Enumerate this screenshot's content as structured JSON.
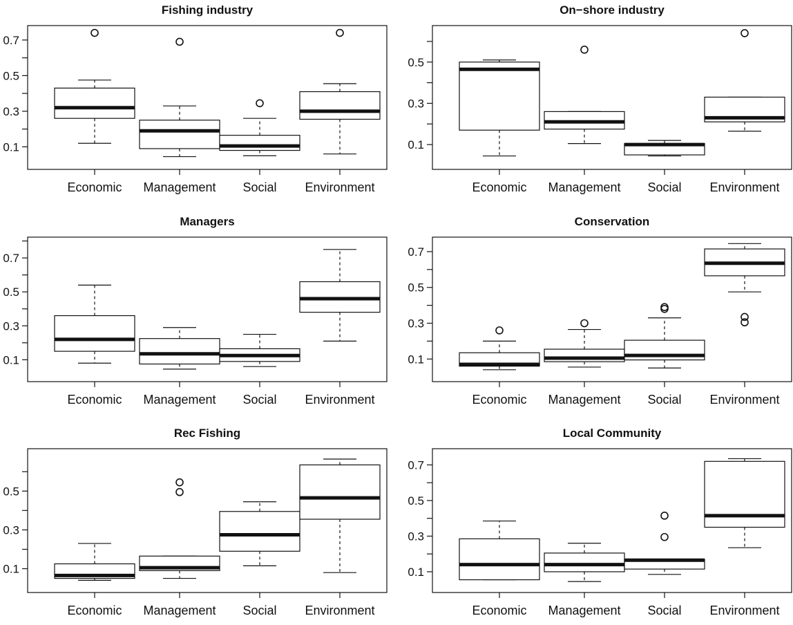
{
  "chart_data": [
    {
      "type": "box",
      "title": "Fishing industry",
      "categories": [
        "Economic",
        "Management",
        "Social",
        "Environment"
      ],
      "yticks": [
        0.1,
        0.3,
        0.5,
        0.7
      ],
      "ylim": [
        0.02,
        0.75
      ],
      "boxes": [
        {
          "name": "Economic",
          "min": 0.12,
          "q1": 0.26,
          "median": 0.32,
          "q3": 0.43,
          "max": 0.475,
          "outliers": [
            0.74
          ]
        },
        {
          "name": "Management",
          "min": 0.045,
          "q1": 0.09,
          "median": 0.19,
          "q3": 0.25,
          "max": 0.33,
          "outliers": [
            0.69
          ]
        },
        {
          "name": "Social",
          "min": 0.05,
          "q1": 0.08,
          "median": 0.105,
          "q3": 0.165,
          "max": 0.26,
          "outliers": [
            0.345
          ]
        },
        {
          "name": "Environment",
          "min": 0.06,
          "q1": 0.255,
          "median": 0.3,
          "q3": 0.41,
          "max": 0.455,
          "outliers": [
            0.74
          ]
        }
      ]
    },
    {
      "type": "box",
      "title": "On−shore industry",
      "categories": [
        "Economic",
        "Management",
        "Social",
        "Environment"
      ],
      "yticks": [
        0.1,
        0.3,
        0.5
      ],
      "ylim": [
        0.02,
        0.65
      ],
      "boxes": [
        {
          "name": "Economic",
          "min": 0.045,
          "q1": 0.17,
          "median": 0.465,
          "q3": 0.5,
          "max": 0.51,
          "outliers": []
        },
        {
          "name": "Management",
          "min": 0.105,
          "q1": 0.175,
          "median": 0.21,
          "q3": 0.26,
          "max": 0.26,
          "outliers": [
            0.56
          ]
        },
        {
          "name": "Social",
          "min": 0.045,
          "q1": 0.05,
          "median": 0.1,
          "q3": 0.105,
          "max": 0.12,
          "outliers": []
        },
        {
          "name": "Environment",
          "min": 0.165,
          "q1": 0.21,
          "median": 0.23,
          "q3": 0.33,
          "max": 0.33,
          "outliers": [
            0.64
          ]
        }
      ]
    },
    {
      "type": "box",
      "title": "Managers",
      "categories": [
        "Economic",
        "Management",
        "Social",
        "Environment"
      ],
      "yticks": [
        0.1,
        0.3,
        0.5,
        0.7
      ],
      "ylim": [
        0.02,
        0.79
      ],
      "boxes": [
        {
          "name": "Economic",
          "min": 0.08,
          "q1": 0.15,
          "median": 0.22,
          "q3": 0.36,
          "max": 0.54,
          "outliers": []
        },
        {
          "name": "Management",
          "min": 0.045,
          "q1": 0.075,
          "median": 0.135,
          "q3": 0.225,
          "max": 0.29,
          "outliers": []
        },
        {
          "name": "Social",
          "min": 0.06,
          "q1": 0.09,
          "median": 0.125,
          "q3": 0.165,
          "max": 0.25,
          "outliers": []
        },
        {
          "name": "Environment",
          "min": 0.21,
          "q1": 0.38,
          "median": 0.46,
          "q3": 0.56,
          "max": 0.75,
          "outliers": []
        }
      ]
    },
    {
      "type": "box",
      "title": "Conservation",
      "categories": [
        "Economic",
        "Management",
        "Social",
        "Environment"
      ],
      "yticks": [
        0.1,
        0.3,
        0.5,
        0.7
      ],
      "ylim": [
        0.02,
        0.75
      ],
      "boxes": [
        {
          "name": "Economic",
          "min": 0.04,
          "q1": 0.06,
          "median": 0.07,
          "q3": 0.135,
          "max": 0.2,
          "outliers": [
            0.26
          ]
        },
        {
          "name": "Management",
          "min": 0.055,
          "q1": 0.085,
          "median": 0.105,
          "q3": 0.155,
          "max": 0.265,
          "outliers": [
            0.3
          ]
        },
        {
          "name": "Social",
          "min": 0.05,
          "q1": 0.095,
          "median": 0.12,
          "q3": 0.205,
          "max": 0.33,
          "outliers": [
            0.38,
            0.39
          ]
        },
        {
          "name": "Environment",
          "min": 0.475,
          "q1": 0.565,
          "median": 0.635,
          "q3": 0.715,
          "max": 0.745,
          "outliers": [
            0.305,
            0.335
          ]
        }
      ]
    },
    {
      "type": "box",
      "title": "Rec Fishing",
      "categories": [
        "Economic",
        "Management",
        "Social",
        "Environment"
      ],
      "yticks": [
        0.1,
        0.3,
        0.5
      ],
      "ylim": [
        0.02,
        0.69
      ],
      "boxes": [
        {
          "name": "Economic",
          "min": 0.04,
          "q1": 0.05,
          "median": 0.065,
          "q3": 0.125,
          "max": 0.23,
          "outliers": []
        },
        {
          "name": "Management",
          "min": 0.05,
          "q1": 0.09,
          "median": 0.105,
          "q3": 0.165,
          "max": 0.165,
          "outliers": [
            0.495,
            0.545
          ]
        },
        {
          "name": "Social",
          "min": 0.115,
          "q1": 0.19,
          "median": 0.275,
          "q3": 0.395,
          "max": 0.445,
          "outliers": []
        },
        {
          "name": "Environment",
          "min": 0.08,
          "q1": 0.355,
          "median": 0.465,
          "q3": 0.635,
          "max": 0.665,
          "outliers": []
        }
      ]
    },
    {
      "type": "box",
      "title": "Local Community",
      "categories": [
        "Economic",
        "Management",
        "Social",
        "Environment"
      ],
      "yticks": [
        0.1,
        0.3,
        0.5,
        0.7
      ],
      "ylim": [
        0.03,
        0.76
      ],
      "boxes": [
        {
          "name": "Economic",
          "min": 0.055,
          "q1": 0.055,
          "median": 0.14,
          "q3": 0.285,
          "max": 0.385,
          "outliers": []
        },
        {
          "name": "Management",
          "min": 0.045,
          "q1": 0.1,
          "median": 0.14,
          "q3": 0.205,
          "max": 0.26,
          "outliers": []
        },
        {
          "name": "Social",
          "min": 0.085,
          "q1": 0.115,
          "median": 0.165,
          "q3": 0.17,
          "max": 0.17,
          "outliers": [
            0.295,
            0.415
          ]
        },
        {
          "name": "Environment",
          "min": 0.235,
          "q1": 0.35,
          "median": 0.415,
          "q3": 0.72,
          "max": 0.735,
          "outliers": []
        }
      ]
    }
  ]
}
